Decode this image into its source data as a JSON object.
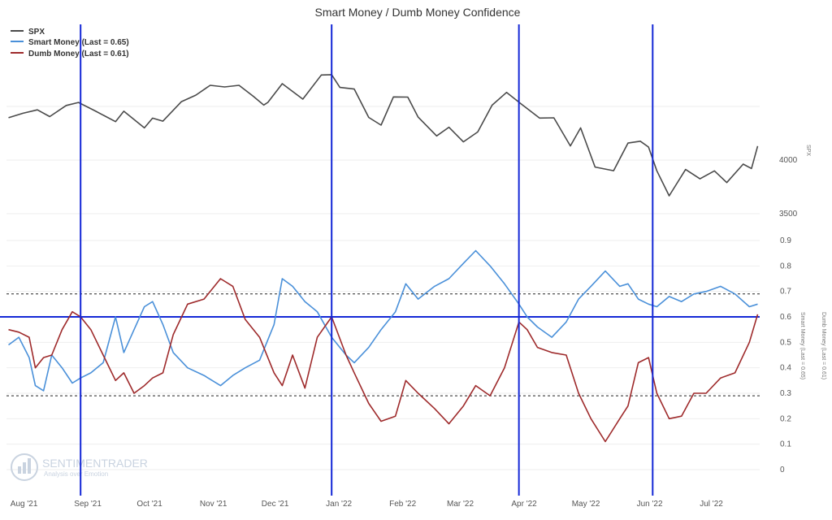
{
  "chart_data": {
    "type": "line",
    "title": "Smart Money / Dumb Money Confidence",
    "legend": {
      "placement": "top-left",
      "entries": [
        "SPX",
        "Smart Money (Last = 0.65)",
        "Dumb Money (Last = 0.61)"
      ]
    },
    "x_ticks": [
      "Aug '21",
      "Sep '21",
      "Oct '21",
      "Nov '21",
      "Dec '21",
      "Jan '22",
      "Feb '22",
      "Mar '22",
      "Apr '22",
      "May '22",
      "Jun '22",
      "Jul '22"
    ],
    "top_panel": {
      "ylabel": "SPX",
      "y_ticks": [
        "4000",
        "3500"
      ],
      "series": {
        "name": "SPX",
        "color": "#4a4a4a",
        "points": [
          [
            "2021-07-30",
            4395
          ],
          [
            "2021-08-06",
            4436
          ],
          [
            "2021-08-13",
            4468
          ],
          [
            "2021-08-19",
            4405
          ],
          [
            "2021-08-27",
            4509
          ],
          [
            "2021-09-02",
            4537
          ],
          [
            "2021-09-10",
            4459
          ],
          [
            "2021-09-20",
            4358
          ],
          [
            "2021-09-24",
            4455
          ],
          [
            "2021-10-04",
            4300
          ],
          [
            "2021-10-08",
            4391
          ],
          [
            "2021-10-13",
            4363
          ],
          [
            "2021-10-22",
            4545
          ],
          [
            "2021-10-29",
            4605
          ],
          [
            "2021-11-05",
            4697
          ],
          [
            "2021-11-12",
            4682
          ],
          [
            "2021-11-19",
            4697
          ],
          [
            "2021-11-26",
            4594
          ],
          [
            "2021-12-01",
            4513
          ],
          [
            "2021-12-03",
            4538
          ],
          [
            "2021-12-10",
            4712
          ],
          [
            "2021-12-20",
            4568
          ],
          [
            "2021-12-29",
            4793
          ],
          [
            "2022-01-03",
            4796
          ],
          [
            "2022-01-07",
            4677
          ],
          [
            "2022-01-14",
            4662
          ],
          [
            "2022-01-21",
            4398
          ],
          [
            "2022-01-27",
            4326
          ],
          [
            "2022-02-02",
            4589
          ],
          [
            "2022-02-09",
            4587
          ],
          [
            "2022-02-14",
            4401
          ],
          [
            "2022-02-23",
            4225
          ],
          [
            "2022-03-01",
            4306
          ],
          [
            "2022-03-08",
            4170
          ],
          [
            "2022-03-15",
            4262
          ],
          [
            "2022-03-22",
            4512
          ],
          [
            "2022-03-29",
            4631
          ],
          [
            "2022-04-05",
            4525
          ],
          [
            "2022-04-14",
            4392
          ],
          [
            "2022-04-21",
            4394
          ],
          [
            "2022-04-29",
            4132
          ],
          [
            "2022-05-04",
            4300
          ],
          [
            "2022-05-11",
            3935
          ],
          [
            "2022-05-20",
            3901
          ],
          [
            "2022-05-27",
            4158
          ],
          [
            "2022-06-02",
            4176
          ],
          [
            "2022-06-06",
            4121
          ],
          [
            "2022-06-10",
            3900
          ],
          [
            "2022-06-16",
            3667
          ],
          [
            "2022-06-24",
            3912
          ],
          [
            "2022-07-01",
            3825
          ],
          [
            "2022-07-08",
            3899
          ],
          [
            "2022-07-14",
            3790
          ],
          [
            "2022-07-22",
            3962
          ],
          [
            "2022-07-26",
            3921
          ],
          [
            "2022-07-29",
            4130
          ]
        ]
      }
    },
    "bottom_panel": {
      "ylim": [
        0,
        0.9
      ],
      "y_ticks": [
        "0.9",
        "0.8",
        "0.7",
        "0.6",
        "0.5",
        "0.4",
        "0.3",
        "0.2",
        "0.1",
        "0"
      ],
      "right_labels": [
        "Smart Money (Last = 0.65)",
        "Dumb Money (Last = 0.61)"
      ],
      "reference_lines": [
        {
          "value": 0.69,
          "style": "dashed",
          "color": "#222222"
        },
        {
          "value": 0.6,
          "style": "solid",
          "color": "#1428d6"
        },
        {
          "value": 0.29,
          "style": "dashed",
          "color": "#222222"
        }
      ],
      "series": [
        {
          "name": "Smart Money (Last = 0.65)",
          "color": "#4a90d9",
          "points": [
            [
              "2021-07-30",
              0.49
            ],
            [
              "2021-08-04",
              0.52
            ],
            [
              "2021-08-09",
              0.44
            ],
            [
              "2021-08-12",
              0.33
            ],
            [
              "2021-08-16",
              0.31
            ],
            [
              "2021-08-20",
              0.45
            ],
            [
              "2021-08-25",
              0.4
            ],
            [
              "2021-08-30",
              0.34
            ],
            [
              "2021-09-03",
              0.36
            ],
            [
              "2021-09-08",
              0.38
            ],
            [
              "2021-09-14",
              0.42
            ],
            [
              "2021-09-20",
              0.6
            ],
            [
              "2021-09-24",
              0.46
            ],
            [
              "2021-09-29",
              0.55
            ],
            [
              "2021-10-04",
              0.64
            ],
            [
              "2021-10-08",
              0.66
            ],
            [
              "2021-10-13",
              0.57
            ],
            [
              "2021-10-18",
              0.46
            ],
            [
              "2021-10-25",
              0.4
            ],
            [
              "2021-11-02",
              0.37
            ],
            [
              "2021-11-10",
              0.33
            ],
            [
              "2021-11-16",
              0.37
            ],
            [
              "2021-11-22",
              0.4
            ],
            [
              "2021-11-29",
              0.43
            ],
            [
              "2021-12-06",
              0.57
            ],
            [
              "2021-12-10",
              0.75
            ],
            [
              "2021-12-15",
              0.72
            ],
            [
              "2021-12-21",
              0.66
            ],
            [
              "2021-12-27",
              0.62
            ],
            [
              "2022-01-03",
              0.52
            ],
            [
              "2022-01-10",
              0.45
            ],
            [
              "2022-01-14",
              0.42
            ],
            [
              "2022-01-21",
              0.48
            ],
            [
              "2022-01-27",
              0.55
            ],
            [
              "2022-02-03",
              0.62
            ],
            [
              "2022-02-08",
              0.73
            ],
            [
              "2022-02-14",
              0.67
            ],
            [
              "2022-02-22",
              0.72
            ],
            [
              "2022-03-01",
              0.75
            ],
            [
              "2022-03-08",
              0.81
            ],
            [
              "2022-03-14",
              0.86
            ],
            [
              "2022-03-21",
              0.8
            ],
            [
              "2022-03-28",
              0.73
            ],
            [
              "2022-04-04",
              0.65
            ],
            [
              "2022-04-08",
              0.6
            ],
            [
              "2022-04-13",
              0.56
            ],
            [
              "2022-04-20",
              0.52
            ],
            [
              "2022-04-27",
              0.58
            ],
            [
              "2022-05-03",
              0.67
            ],
            [
              "2022-05-09",
              0.72
            ],
            [
              "2022-05-16",
              0.78
            ],
            [
              "2022-05-23",
              0.72
            ],
            [
              "2022-05-27",
              0.73
            ],
            [
              "2022-06-01",
              0.67
            ],
            [
              "2022-06-06",
              0.65
            ],
            [
              "2022-06-10",
              0.64
            ],
            [
              "2022-06-16",
              0.68
            ],
            [
              "2022-06-22",
              0.66
            ],
            [
              "2022-06-28",
              0.69
            ],
            [
              "2022-07-04",
              0.7
            ],
            [
              "2022-07-11",
              0.72
            ],
            [
              "2022-07-18",
              0.69
            ],
            [
              "2022-07-25",
              0.64
            ],
            [
              "2022-07-29",
              0.65
            ]
          ]
        },
        {
          "name": "Dumb Money (Last = 0.61)",
          "color": "#9e2a2b",
          "points": [
            [
              "2021-07-30",
              0.55
            ],
            [
              "2021-08-04",
              0.54
            ],
            [
              "2021-08-09",
              0.52
            ],
            [
              "2021-08-12",
              0.4
            ],
            [
              "2021-08-16",
              0.44
            ],
            [
              "2021-08-20",
              0.45
            ],
            [
              "2021-08-25",
              0.55
            ],
            [
              "2021-08-30",
              0.62
            ],
            [
              "2021-09-03",
              0.6
            ],
            [
              "2021-09-08",
              0.55
            ],
            [
              "2021-09-14",
              0.45
            ],
            [
              "2021-09-20",
              0.35
            ],
            [
              "2021-09-24",
              0.38
            ],
            [
              "2021-09-29",
              0.3
            ],
            [
              "2021-10-04",
              0.33
            ],
            [
              "2021-10-08",
              0.36
            ],
            [
              "2021-10-13",
              0.38
            ],
            [
              "2021-10-18",
              0.53
            ],
            [
              "2021-10-25",
              0.65
            ],
            [
              "2021-11-02",
              0.67
            ],
            [
              "2021-11-10",
              0.75
            ],
            [
              "2021-11-16",
              0.72
            ],
            [
              "2021-11-22",
              0.59
            ],
            [
              "2021-11-29",
              0.52
            ],
            [
              "2021-12-06",
              0.38
            ],
            [
              "2021-12-10",
              0.33
            ],
            [
              "2021-12-15",
              0.45
            ],
            [
              "2021-12-21",
              0.32
            ],
            [
              "2021-12-27",
              0.52
            ],
            [
              "2022-01-03",
              0.6
            ],
            [
              "2022-01-10",
              0.45
            ],
            [
              "2022-01-14",
              0.38
            ],
            [
              "2022-01-21",
              0.26
            ],
            [
              "2022-01-27",
              0.19
            ],
            [
              "2022-02-03",
              0.21
            ],
            [
              "2022-02-08",
              0.35
            ],
            [
              "2022-02-14",
              0.3
            ],
            [
              "2022-02-22",
              0.24
            ],
            [
              "2022-03-01",
              0.18
            ],
            [
              "2022-03-08",
              0.25
            ],
            [
              "2022-03-14",
              0.33
            ],
            [
              "2022-03-21",
              0.29
            ],
            [
              "2022-03-28",
              0.4
            ],
            [
              "2022-04-04",
              0.58
            ],
            [
              "2022-04-08",
              0.55
            ],
            [
              "2022-04-13",
              0.48
            ],
            [
              "2022-04-20",
              0.46
            ],
            [
              "2022-04-27",
              0.45
            ],
            [
              "2022-05-03",
              0.3
            ],
            [
              "2022-05-09",
              0.2
            ],
            [
              "2022-05-16",
              0.11
            ],
            [
              "2022-05-23",
              0.2
            ],
            [
              "2022-05-27",
              0.25
            ],
            [
              "2022-06-01",
              0.42
            ],
            [
              "2022-06-06",
              0.44
            ],
            [
              "2022-06-10",
              0.3
            ],
            [
              "2022-06-16",
              0.2
            ],
            [
              "2022-06-22",
              0.21
            ],
            [
              "2022-06-28",
              0.3
            ],
            [
              "2022-07-04",
              0.3
            ],
            [
              "2022-07-11",
              0.36
            ],
            [
              "2022-07-18",
              0.38
            ],
            [
              "2022-07-25",
              0.5
            ],
            [
              "2022-07-29",
              0.61
            ]
          ]
        }
      ]
    },
    "markers": {
      "color": "#1428d6",
      "dates": [
        "2021-09-03",
        "2022-01-03",
        "2022-04-04",
        "2022-06-08"
      ]
    },
    "watermark": {
      "brand": "SENTIMENTRADER",
      "tagline": "Analysis over Emotion"
    }
  }
}
